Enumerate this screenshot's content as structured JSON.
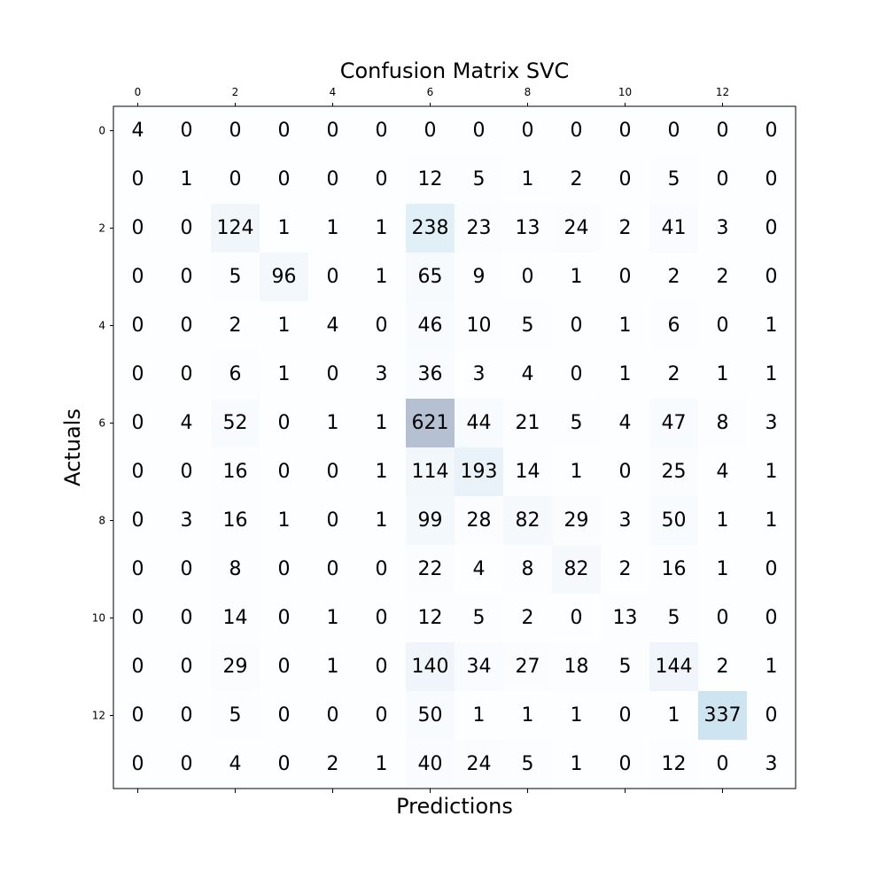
{
  "chart_data": {
    "type": "heatmap",
    "title": "Confusion Matrix SVC",
    "xlabel": "Predictions",
    "ylabel": "Actuals",
    "x_tick_labels": [
      "0",
      "2",
      "4",
      "6",
      "8",
      "10",
      "12"
    ],
    "y_tick_labels": [
      "0",
      "2",
      "4",
      "6",
      "8",
      "10",
      "12"
    ],
    "tick_step": 2,
    "colormap": "Blues",
    "cell_alpha": 0.3,
    "matrix": [
      [
        4,
        0,
        0,
        0,
        0,
        0,
        0,
        0,
        0,
        0,
        0,
        0,
        0,
        0
      ],
      [
        0,
        1,
        0,
        0,
        0,
        0,
        12,
        5,
        1,
        2,
        0,
        5,
        0,
        0
      ],
      [
        0,
        0,
        124,
        1,
        1,
        1,
        238,
        23,
        13,
        24,
        2,
        41,
        3,
        0
      ],
      [
        0,
        0,
        5,
        96,
        0,
        1,
        65,
        9,
        0,
        1,
        0,
        2,
        2,
        0
      ],
      [
        0,
        0,
        2,
        1,
        4,
        0,
        46,
        10,
        5,
        0,
        1,
        6,
        0,
        1
      ],
      [
        0,
        0,
        6,
        1,
        0,
        3,
        36,
        3,
        4,
        0,
        1,
        2,
        1,
        1
      ],
      [
        0,
        4,
        52,
        0,
        1,
        1,
        621,
        44,
        21,
        5,
        4,
        47,
        8,
        3
      ],
      [
        0,
        0,
        16,
        0,
        0,
        1,
        114,
        193,
        14,
        1,
        0,
        25,
        4,
        1
      ],
      [
        0,
        3,
        16,
        1,
        0,
        1,
        99,
        28,
        82,
        29,
        3,
        50,
        1,
        1
      ],
      [
        0,
        0,
        8,
        0,
        0,
        0,
        22,
        4,
        8,
        82,
        2,
        16,
        1,
        0
      ],
      [
        0,
        0,
        14,
        0,
        1,
        0,
        12,
        5,
        2,
        0,
        13,
        5,
        0,
        0
      ],
      [
        0,
        0,
        29,
        0,
        1,
        0,
        140,
        34,
        27,
        18,
        5,
        144,
        2,
        1
      ],
      [
        0,
        0,
        5,
        0,
        0,
        0,
        50,
        1,
        1,
        1,
        0,
        1,
        337,
        0
      ],
      [
        0,
        0,
        4,
        0,
        2,
        1,
        40,
        24,
        5,
        1,
        0,
        12,
        0,
        3
      ]
    ]
  }
}
